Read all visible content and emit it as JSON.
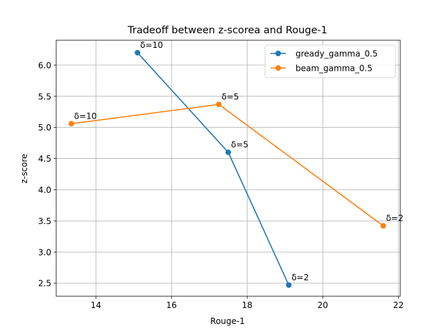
{
  "chart_data": {
    "type": "line",
    "title": "Tradeoff between z-scorea and Rouge-1",
    "xlabel": "Rouge-1",
    "ylabel": "z-score",
    "xlim": [
      12.95,
      22.05
    ],
    "ylim": [
      2.29,
      6.4
    ],
    "xticks": [
      14,
      16,
      18,
      20,
      22
    ],
    "yticks": [
      2.5,
      3.0,
      3.5,
      4.0,
      4.5,
      5.0,
      5.5,
      6.0
    ],
    "grid": true,
    "legend_position": "top-right",
    "series": [
      {
        "name": "gready_gamma_0.5",
        "color": "#1f77b4",
        "points": [
          {
            "x": 15.1,
            "y": 6.2,
            "label": "δ=10"
          },
          {
            "x": 17.5,
            "y": 4.6,
            "label": "δ=5"
          },
          {
            "x": 19.1,
            "y": 2.47,
            "label": "δ=2"
          }
        ]
      },
      {
        "name": "beam_gamma_0.5",
        "color": "#ff7f0e",
        "points": [
          {
            "x": 13.35,
            "y": 5.06,
            "label": "δ=10"
          },
          {
            "x": 17.25,
            "y": 5.37,
            "label": "δ=5"
          },
          {
            "x": 21.6,
            "y": 3.42,
            "label": "δ=2"
          }
        ]
      }
    ]
  }
}
